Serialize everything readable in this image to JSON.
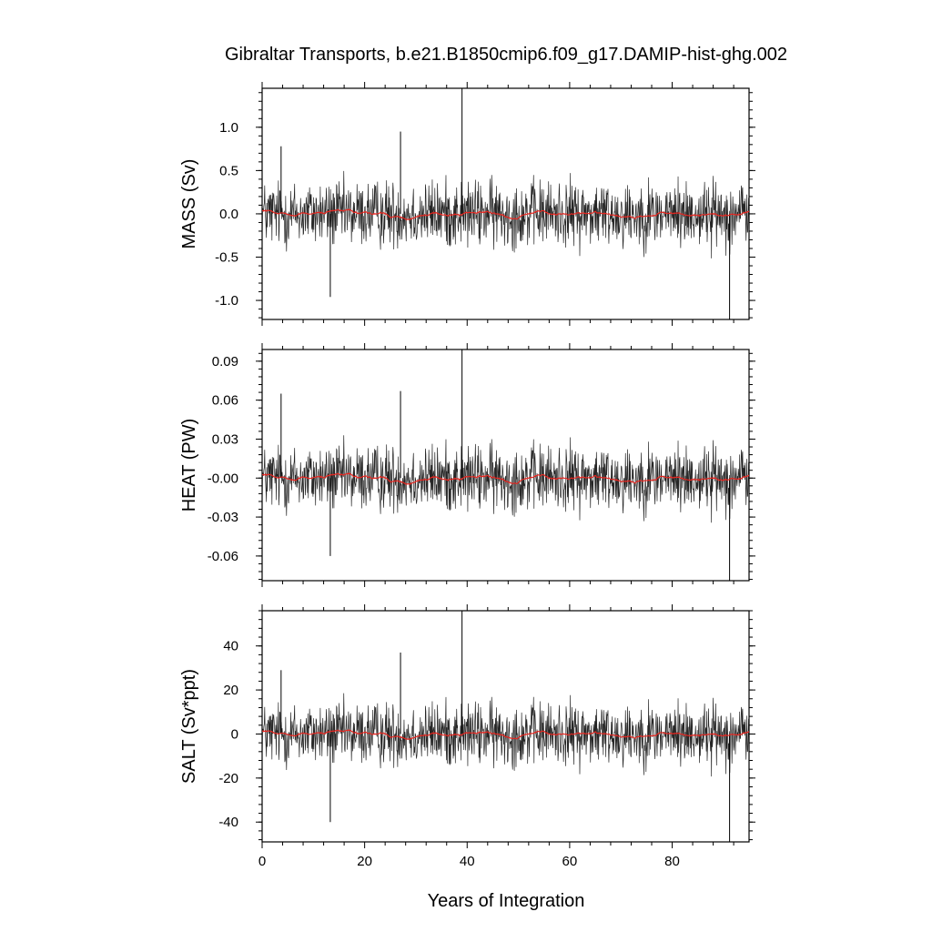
{
  "figure": {
    "title": "Gibraltar Transports, b.e21.B1850cmip6.f09_g17.DAMIP-hist-ghg.002",
    "xlabel": "Years of Integration"
  },
  "colors": {
    "raw_series": "#000000",
    "smoothed_series": "#e8251f",
    "background": "#ffffff"
  },
  "chart_data": [
    {
      "type": "line",
      "title": "",
      "xlabel": "Years of Integration",
      "ylabel": "MASS (Sv)",
      "xlim": [
        0,
        95
      ],
      "ylim": [
        -1.22,
        1.45
      ],
      "x_ticks": [
        0,
        20,
        40,
        60,
        80
      ],
      "x_tick_labels": [
        "0",
        "20",
        "40",
        "60",
        "80"
      ],
      "y_ticks": [
        1.0,
        0.5,
        0.0,
        -0.5,
        -1.0
      ],
      "y_tick_labels": [
        "1.0",
        "0.5",
        "0.0",
        "-0.5",
        "-1.0"
      ],
      "grid": false,
      "series": [
        {
          "role": "raw",
          "x_start": 0,
          "x_end": 95,
          "amplitude": 0.24,
          "spikes": [
            [
              3.7,
              0.78
            ],
            [
              13.3,
              -0.96
            ],
            [
              27.0,
              0.95
            ],
            [
              39.0,
              1.45
            ],
            [
              91.2,
              -1.22
            ]
          ]
        },
        {
          "role": "smoothed",
          "x_start": 0,
          "x_end": 95,
          "amplitude": 0.07
        }
      ]
    },
    {
      "type": "line",
      "title": "",
      "xlabel": "Years of Integration",
      "ylabel": "HEAT (PW)",
      "xlim": [
        0,
        95
      ],
      "ylim": [
        -0.079,
        0.099
      ],
      "x_ticks": [
        0,
        20,
        40,
        60,
        80
      ],
      "x_tick_labels": [
        "0",
        "20",
        "40",
        "60",
        "80"
      ],
      "y_ticks": [
        0.09,
        0.06,
        0.03,
        0.0,
        -0.03,
        -0.06
      ],
      "y_tick_labels": [
        "0.09",
        "0.06",
        "0.03",
        "-0.00",
        "-0.03",
        "-0.06"
      ],
      "grid": false,
      "series": [
        {
          "role": "raw",
          "x_start": 0,
          "x_end": 95,
          "amplitude": 0.016,
          "spikes": [
            [
              3.7,
              0.065
            ],
            [
              13.3,
              -0.06
            ],
            [
              27.0,
              0.067
            ],
            [
              39.0,
              0.099
            ],
            [
              91.2,
              -0.079
            ]
          ]
        },
        {
          "role": "smoothed",
          "x_start": 0,
          "x_end": 95,
          "amplitude": 0.005
        }
      ]
    },
    {
      "type": "line",
      "title": "",
      "xlabel": "Years of Integration",
      "ylabel": "SALT (Sv*ppt)",
      "xlim": [
        0,
        95
      ],
      "ylim": [
        -49,
        56
      ],
      "x_ticks": [
        0,
        20,
        40,
        60,
        80
      ],
      "x_tick_labels": [
        "0",
        "20",
        "40",
        "60",
        "80"
      ],
      "y_ticks": [
        40,
        20,
        0,
        -20,
        -40
      ],
      "y_tick_labels": [
        "40",
        "20",
        "0",
        "-20",
        "-40"
      ],
      "grid": false,
      "series": [
        {
          "role": "raw",
          "x_start": 0,
          "x_end": 95,
          "amplitude": 9,
          "spikes": [
            [
              3.7,
              29
            ],
            [
              13.3,
              -40
            ],
            [
              27.0,
              37
            ],
            [
              39.0,
              56
            ],
            [
              91.2,
              -49
            ]
          ]
        },
        {
          "role": "smoothed",
          "x_start": 0,
          "x_end": 95,
          "amplitude": 2.5
        }
      ]
    }
  ]
}
